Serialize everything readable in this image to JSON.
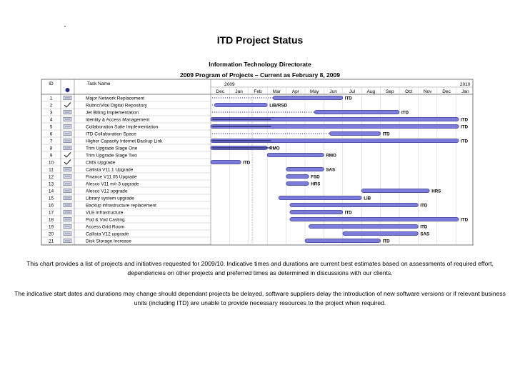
{
  "title": "ITD Project Status",
  "subtitle1": "Information Technology Directorate",
  "subtitle2": "2009 Program of Projects – Current as February 8, 2009",
  "colors": {
    "bar": "#7b7bd9",
    "bar_edge": "#2a2a8a",
    "grid": "#c8c8c8",
    "today": "#9a9ad8"
  },
  "chart_data": {
    "type": "gantt",
    "columns": {
      "id": "ID",
      "task": "Task Name"
    },
    "year_labels": [
      {
        "label": "2009",
        "month_index": 1
      },
      {
        "label": "2010",
        "month_index": 13
      }
    ],
    "months": [
      "Dec",
      "Jan",
      "Feb",
      "Mar",
      "Apr",
      "May",
      "Jun",
      "Jul",
      "Aug",
      "Sep",
      "Oct",
      "Nov",
      "Dec",
      "Jan"
    ],
    "status_date_month": 2.2,
    "tasks": [
      {
        "id": "1",
        "name": "Major Network Replacement",
        "status": "doing",
        "dotted_to": 3.3,
        "start": 3.3,
        "end": 7.0,
        "label": "ITD"
      },
      {
        "id": "2",
        "name": "Rubric/Vital Digital Repository",
        "status": "done",
        "dotted_to": 0.2,
        "start": 0.2,
        "end": 3.0,
        "label": "LIB/RSD"
      },
      {
        "id": "3",
        "name": "Jet Billing Implementation",
        "status": "doing",
        "dotted_to": 5.5,
        "start": 5.5,
        "end": 10.0,
        "label": "ITD"
      },
      {
        "id": "4",
        "name": "Identity & Access Management",
        "status": "doing",
        "dotted_to": null,
        "start": 0.0,
        "end": 13.15,
        "label": "ITD"
      },
      {
        "id": "5",
        "name": "Collaboration Suite Implementation",
        "status": "doing",
        "dotted_to": null,
        "start": 0.0,
        "end": 13.15,
        "label": "ITD"
      },
      {
        "id": "6",
        "name": "ITD Collaboration Space",
        "status": "doing",
        "dotted_to": 6.3,
        "start": 6.3,
        "end": 9.0,
        "label": "ITD"
      },
      {
        "id": "7",
        "name": "Higher Capacity Internet Backup Link",
        "status": "doing",
        "dotted_to": null,
        "start": 0.0,
        "end": 13.15,
        "label": "ITD"
      },
      {
        "id": "8",
        "name": "Trim Upgrade Stage One",
        "status": "doing",
        "dotted_to": null,
        "start": 0.0,
        "end": 3.0,
        "label": "RMO"
      },
      {
        "id": "9",
        "name": "Trim Upgrade Stage Two",
        "status": "done",
        "dotted_to": null,
        "start": 3.0,
        "end": 6.0,
        "label": "RMO"
      },
      {
        "id": "10",
        "name": "CMS Upgrade",
        "status": "done",
        "dotted_to": null,
        "start": 0.0,
        "end": 1.6,
        "label": "ITD"
      },
      {
        "id": "11",
        "name": "Callista V11.1 Upgrade",
        "status": "doing",
        "dotted_to": null,
        "start": 4.0,
        "end": 6.0,
        "label": "SAS"
      },
      {
        "id": "12",
        "name": "Finance V11.05 Upgrade",
        "status": "doing",
        "dotted_to": null,
        "start": 4.0,
        "end": 5.2,
        "label": "FSD"
      },
      {
        "id": "13",
        "name": "Alesco V11 m/r 3 upgrade",
        "status": "doing",
        "dotted_to": null,
        "start": 4.0,
        "end": 5.2,
        "label": "HRS"
      },
      {
        "id": "14",
        "name": "Alesco V12 upgrade",
        "status": "doing",
        "dotted_to": null,
        "start": 8.0,
        "end": 11.6,
        "label": "HRS"
      },
      {
        "id": "15",
        "name": "Library system upgrade",
        "status": "doing",
        "dotted_to": null,
        "start": 3.6,
        "end": 8.0,
        "label": "LIB"
      },
      {
        "id": "16",
        "name": "Backup infrastructure replacement",
        "status": "doing",
        "dotted_to": null,
        "start": 4.2,
        "end": 11.0,
        "label": "ITD"
      },
      {
        "id": "17",
        "name": "VLE Infrastructure",
        "status": "doing",
        "dotted_to": null,
        "start": 4.2,
        "end": 7.0,
        "label": "ITD"
      },
      {
        "id": "18",
        "name": "Pod & Vod Casting",
        "status": "doing",
        "dotted_to": null,
        "start": 4.2,
        "end": 13.15,
        "label": "ITD"
      },
      {
        "id": "19",
        "name": "Access Grid Room",
        "status": "doing",
        "dotted_to": null,
        "start": 5.2,
        "end": 11.0,
        "label": "ITD"
      },
      {
        "id": "20",
        "name": "Callista V12 upgrade",
        "status": "doing",
        "dotted_to": null,
        "start": 7.0,
        "end": 11.0,
        "label": "SAS"
      },
      {
        "id": "21",
        "name": "Disk Storage Increase",
        "status": "doing",
        "dotted_to": null,
        "start": 5.0,
        "end": 9.0,
        "label": "ITD"
      }
    ]
  },
  "paragraph1": "This chart provides a list of projects and initiatives requested for 2009/10. Indicative times and durations are current best estimates based on assessments of required effort, dependencies on other projects and preferred times as determined in discussions with our clients.",
  "paragraph2": "The indicative start dates and durations may change should dependant projects be delayed, software suppliers delay the introduction of new software versions or if relevant business units (including ITD) are unable to provide necessary resources to the project when required."
}
